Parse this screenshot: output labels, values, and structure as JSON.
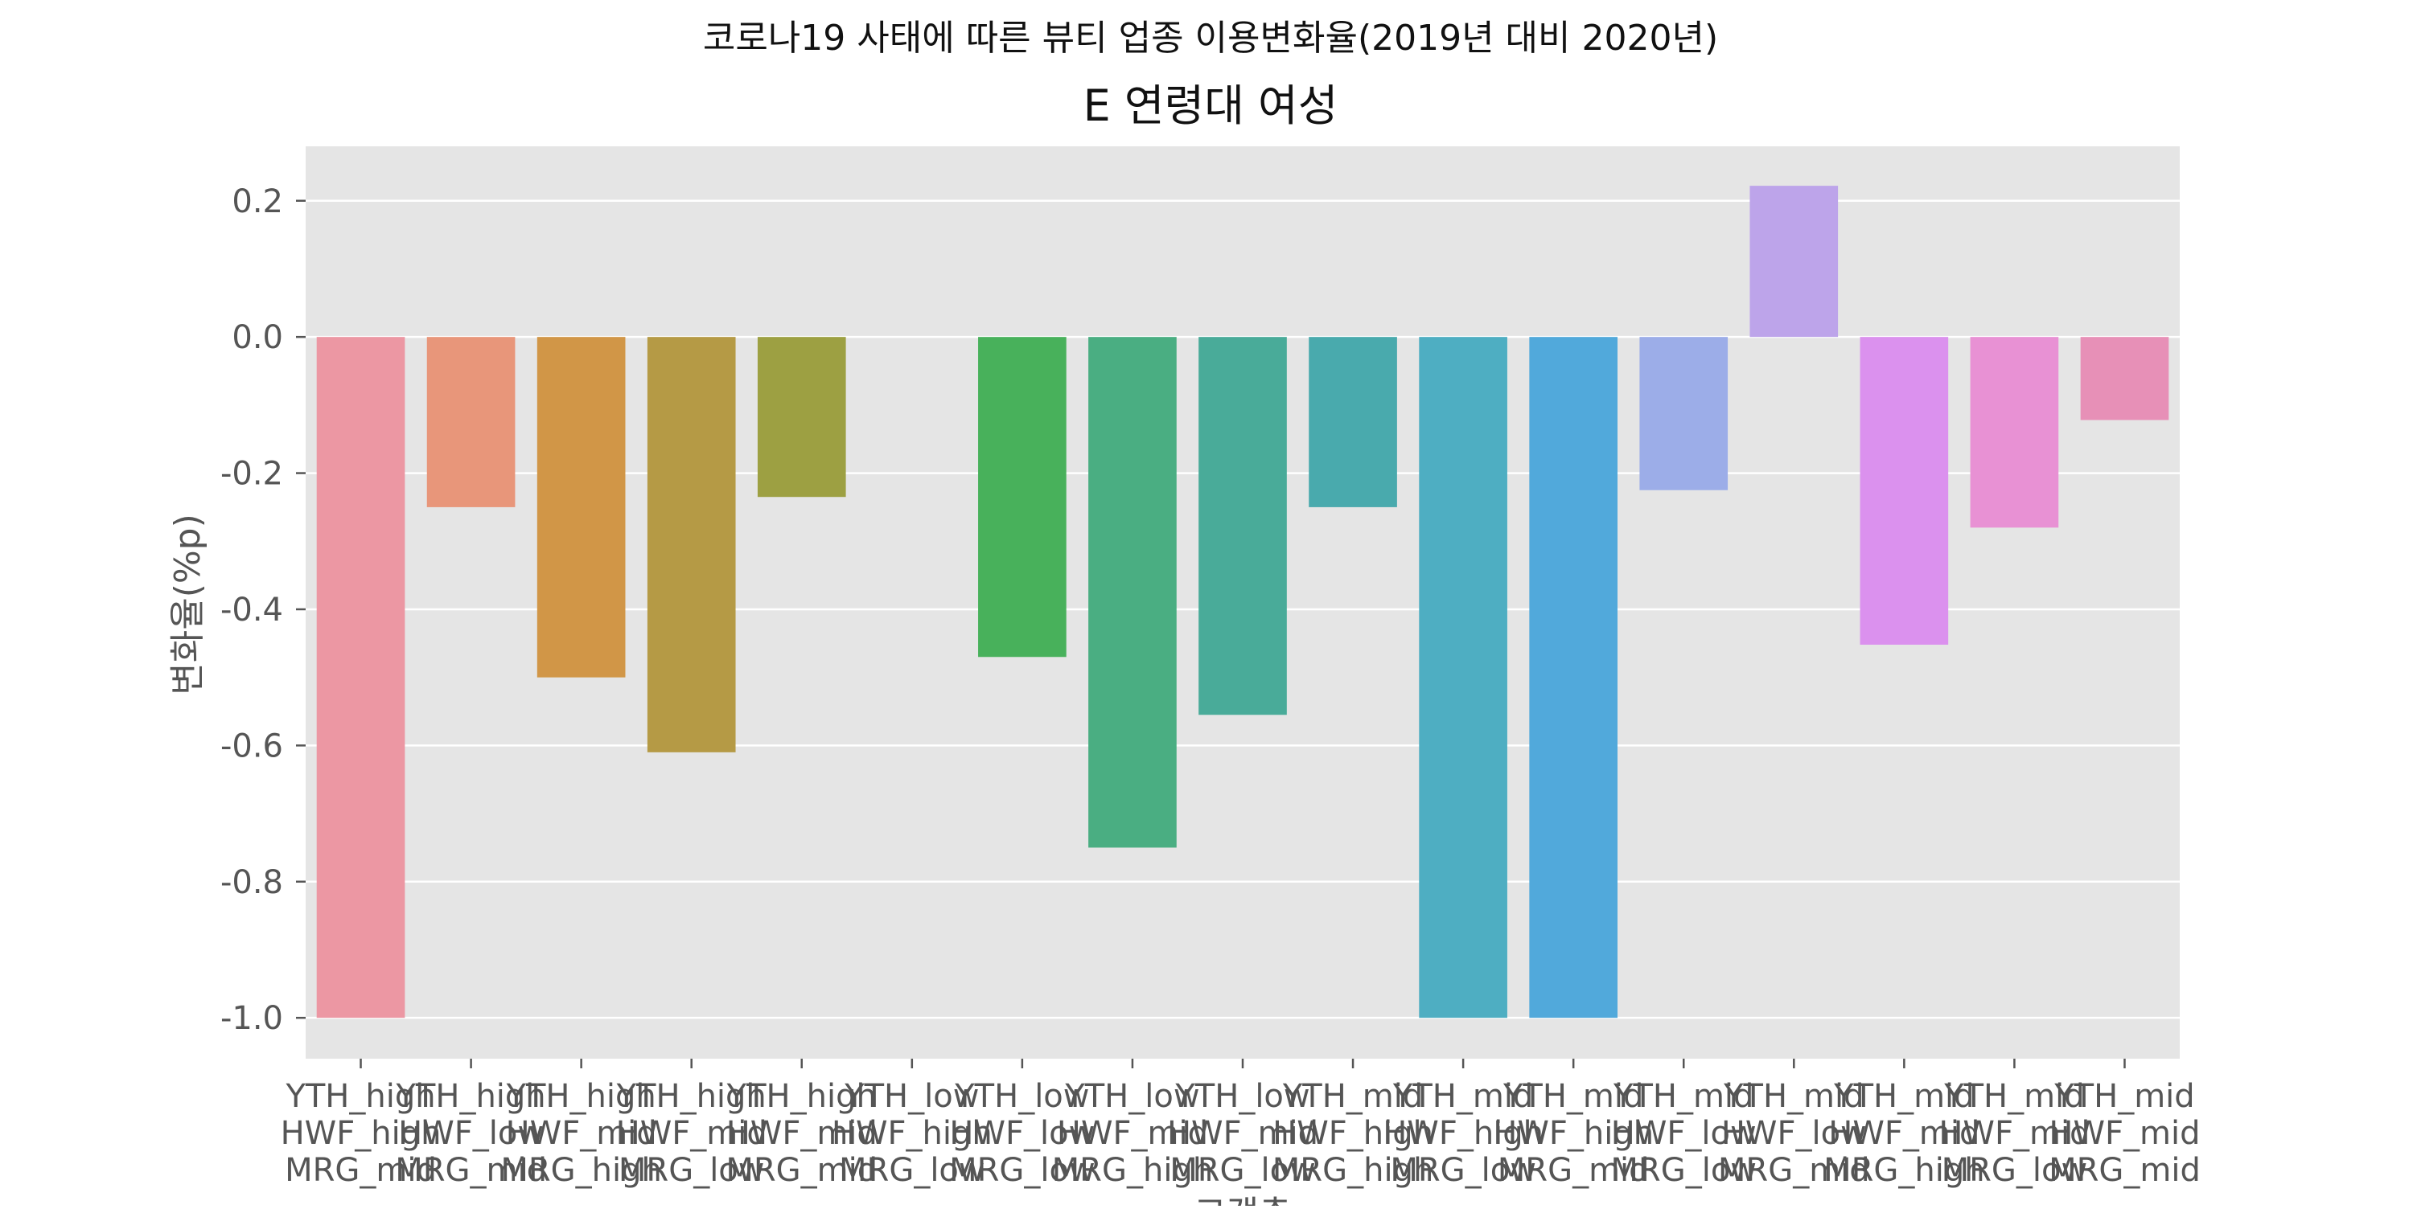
{
  "chart_data": {
    "type": "bar",
    "suptitle": "코로나19 사태에 따른 뷰티 업종 이용변화율(2019년 대비 2020년)",
    "title": "E 연령대 여성",
    "xlabel": "고객층",
    "ylabel": "변화율(%p)",
    "ylim": [
      -1.06,
      0.28
    ],
    "yticks": [
      0.2,
      0.0,
      -0.2,
      -0.4,
      -0.6,
      -0.8,
      -1.0
    ],
    "ytick_labels": [
      "0.2",
      "0.0",
      "-0.2",
      "-0.4",
      "-0.6",
      "-0.8",
      "-1.0"
    ],
    "grid": true,
    "categories": [
      "YTH_high\nHWF_high\nMRG_mid",
      "YTH_high\nHWF_low\nMRG_mid",
      "YTH_high\nHWF_mid\nMRG_high",
      "YTH_high\nHWF_mid\nMRG_low",
      "YTH_high\nHWF_mid\nMRG_mid",
      "YTH_low\nHWF_high\nMRG_low",
      "YTH_low\nHWF_low\nMRG_low",
      "YTH_low\nHWF_mid\nMRG_high",
      "YTH_low\nHWF_mid\nMRG_low",
      "YTH_mid\nHWF_high\nMRG_high",
      "YTH_mid\nHWF_high\nMRG_low",
      "YTH_mid\nHWF_high\nMRG_mid",
      "YTH_mid\nHWF_low\nMRG_low",
      "YTH_mid\nHWF_low\nMRG_mid",
      "YTH_mid\nHWF_mid\nMRG_high",
      "YTH_mid\nHWF_mid\nMRG_low",
      "YTH_mid\nHWF_mid\nMRG_mid"
    ],
    "values": [
      -1.0,
      -0.25,
      -0.5,
      -0.61,
      -0.235,
      0.0,
      -0.47,
      -0.75,
      -0.555,
      -0.25,
      -1.0,
      -1.0,
      -0.225,
      0.222,
      -0.452,
      -0.28,
      -0.122
    ],
    "colors": [
      "#ec97a3",
      "#e8967a",
      "#d19647",
      "#b59a45",
      "#9da042",
      "#90a43f",
      "#48b15b",
      "#4aae82",
      "#49ab99",
      "#49aaad",
      "#4eaec2",
      "#51a9db",
      "#9cade8",
      "#bda4ea",
      "#db91ee",
      "#e891d4",
      "#e790b7"
    ],
    "colors_meta": {
      "plot_background": "#e5e5e5",
      "gridline": "#ffffff",
      "tick_text": "#555555",
      "title_text": "#111111"
    }
  }
}
